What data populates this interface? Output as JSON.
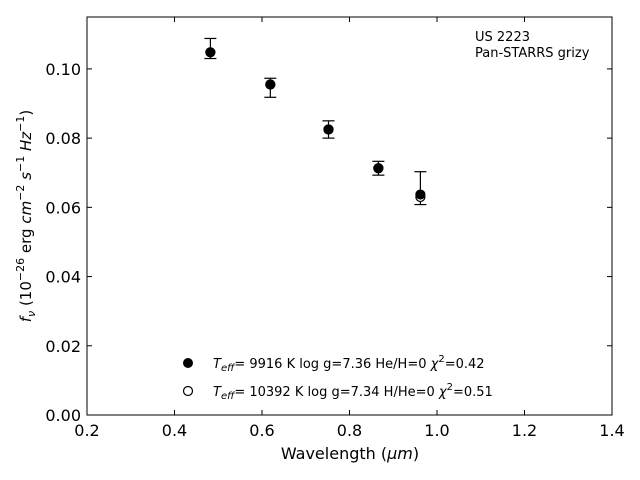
{
  "chart_data": {
    "type": "scatter",
    "xlabel_main": "Wavelength (",
    "xlabel_unit": "μm",
    "xlabel_close": ")",
    "ylabel_parts": [
      "f",
      "ν",
      " (10",
      "−26",
      " erg ",
      "cm",
      "−2",
      " ",
      "s",
      "−1",
      " ",
      "Hz",
      "−1",
      ")"
    ],
    "xlim": [
      0.2,
      1.4
    ],
    "ylim": [
      0.0,
      0.115
    ],
    "xticks": [
      0.2,
      0.4,
      0.6,
      0.8,
      1.0,
      1.2,
      1.4
    ],
    "xtick_labels": [
      "0.2",
      "0.4",
      "0.6",
      "0.8",
      "1.0",
      "1.2",
      "1.4"
    ],
    "yticks": [
      0.0,
      0.02,
      0.04,
      0.06,
      0.08,
      0.1
    ],
    "ytick_labels": [
      "0.00",
      "0.02",
      "0.04",
      "0.06",
      "0.08",
      "0.10"
    ],
    "annotation_lines": [
      "US 2223",
      "Pan-STARRS grizy"
    ],
    "observed": {
      "x": [
        0.482,
        0.619,
        0.752,
        0.866,
        0.962
      ],
      "y": [
        0.1055,
        0.0945,
        0.0825,
        0.071,
        0.0655
      ],
      "err_low": [
        0.103,
        0.0918,
        0.08,
        0.0693,
        0.0608
      ],
      "err_high": [
        0.1088,
        0.0973,
        0.085,
        0.0733,
        0.0703
      ]
    },
    "series": [
      {
        "name_parts": [
          "T",
          "eff",
          "=  9916 K  log g=7.36  He/H=0  ",
          "χ",
          "2",
          "=0.42"
        ],
        "marker": "filled",
        "values": [
          0.1048,
          0.0955,
          0.0825,
          0.0713,
          0.0637
        ]
      },
      {
        "name_parts": [
          "T",
          "eff",
          "= 10392 K  log g=7.34  H/He=0  ",
          "χ",
          "2",
          "=0.51"
        ],
        "marker": "open",
        "values": [
          0.1048,
          0.0955,
          0.0825,
          0.0713,
          0.063
        ]
      }
    ],
    "legend_position": "lower-center",
    "grid": false
  }
}
